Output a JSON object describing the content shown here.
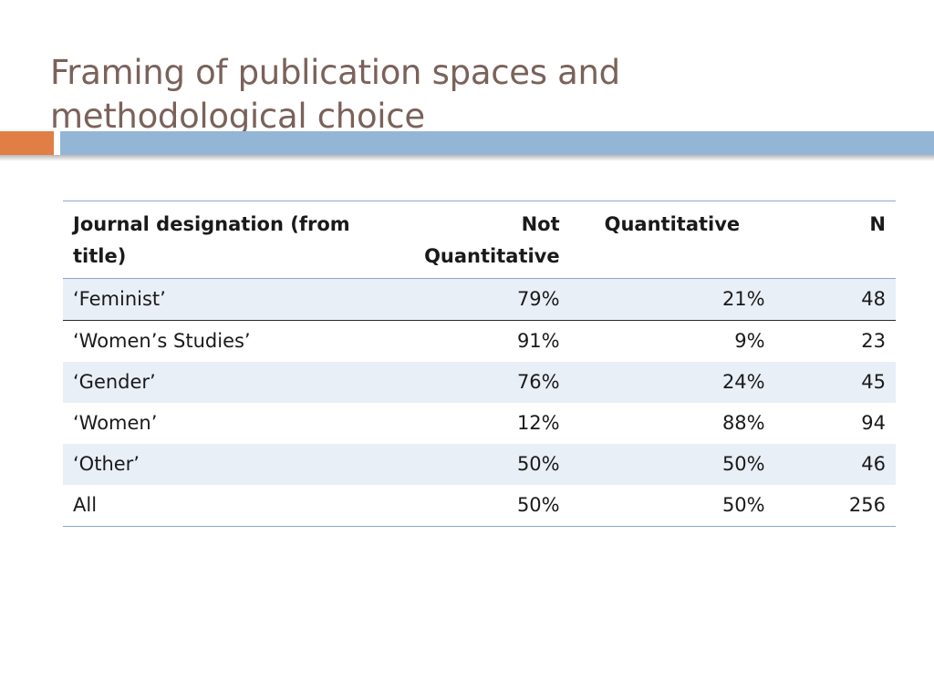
{
  "slide": {
    "title": "Framing of publication spaces and methodological choice",
    "colors": {
      "title": "#7a625a",
      "accent_orange": "#e07e45",
      "accent_blue": "#94b6d6",
      "row_shade": "#e9eff7",
      "rule": "#8aa9cf"
    }
  },
  "table": {
    "headers": {
      "designation": "Journal designation (from title)",
      "not_quant": "Not Quantitative",
      "quant": "Quantitative",
      "n": "N"
    },
    "rows": [
      {
        "designation": "‘Feminist’",
        "not_quant": "79%",
        "quant": "21%",
        "n": "48"
      },
      {
        "designation": "‘Women’s Studies’",
        "not_quant": "91%",
        "quant": "9%",
        "n": "23"
      },
      {
        "designation": "‘Gender’",
        "not_quant": "76%",
        "quant": "24%",
        "n": "45"
      },
      {
        "designation": "‘Women’",
        "not_quant": "12%",
        "quant": "88%",
        "n": "94"
      },
      {
        "designation": "‘Other’",
        "not_quant": "50%",
        "quant": "50%",
        "n": "46"
      },
      {
        "designation": "All",
        "not_quant": "50%",
        "quant": "50%",
        "n": "256"
      }
    ]
  }
}
